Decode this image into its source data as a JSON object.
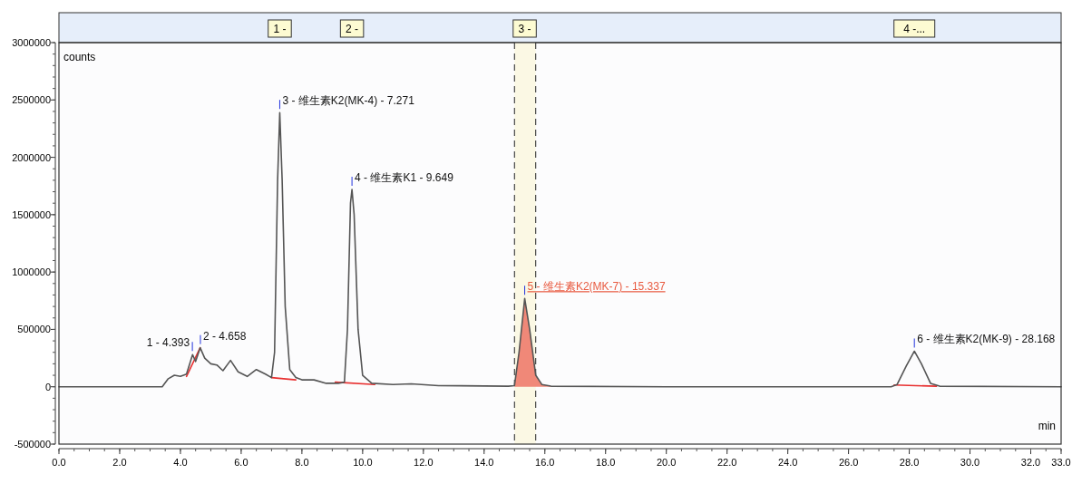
{
  "chart_data": {
    "type": "line",
    "xlabel": "min",
    "ylabel": "counts",
    "xlim": [
      0,
      33
    ],
    "ylim": [
      -500000,
      3000000
    ],
    "xticks": [
      {
        "value": 0,
        "label": "0.0"
      },
      {
        "value": 2,
        "label": "2.0"
      },
      {
        "value": 4,
        "label": "4.0"
      },
      {
        "value": 6,
        "label": "6.0"
      },
      {
        "value": 8,
        "label": "8.0"
      },
      {
        "value": 10,
        "label": "10.0"
      },
      {
        "value": 12,
        "label": "12.0"
      },
      {
        "value": 14,
        "label": "14.0"
      },
      {
        "value": 16,
        "label": "16.0"
      },
      {
        "value": 18,
        "label": "18.0"
      },
      {
        "value": 20,
        "label": "20.0"
      },
      {
        "value": 22,
        "label": "22.0"
      },
      {
        "value": 24,
        "label": "24.0"
      },
      {
        "value": 26,
        "label": "26.0"
      },
      {
        "value": 28,
        "label": "28.0"
      },
      {
        "value": 30,
        "label": "30.0"
      },
      {
        "value": 32,
        "label": "32.0"
      },
      {
        "value": 33,
        "label": "33.0"
      }
    ],
    "yticks": [
      -500000,
      0,
      500000,
      1000000,
      1500000,
      2000000,
      2500000,
      3000000
    ],
    "grid": false,
    "marker": "none",
    "line_style": "solid",
    "series": [
      {
        "type": "area",
        "color": "#f08878",
        "x": [
          15.0,
          15.15,
          15.337,
          15.5,
          15.7,
          15.9,
          16.2
        ],
        "values": [
          10000,
          300000,
          770000,
          500000,
          100000,
          20000,
          5000
        ]
      },
      {
        "type": "line",
        "color": "#e83030",
        "x": [
          4.2,
          4.65,
          null,
          7.0,
          7.8,
          null,
          9.1,
          10.4,
          null,
          27.5,
          28.9
        ],
        "values": [
          90000,
          340000,
          null,
          80000,
          60000,
          null,
          40000,
          20000,
          null,
          15000,
          5000
        ]
      },
      {
        "type": "line",
        "color": "#555555",
        "x": [
          0,
          3.4,
          3.6,
          3.8,
          4.0,
          4.2,
          4.4,
          4.5,
          4.65,
          4.8,
          5.0,
          5.2,
          5.4,
          5.65,
          5.9,
          6.2,
          6.5,
          6.8,
          7.0,
          7.1,
          7.2,
          7.271,
          7.35,
          7.45,
          7.6,
          7.8,
          8.0,
          8.4,
          8.8,
          9.2,
          9.4,
          9.5,
          9.6,
          9.649,
          9.72,
          9.85,
          10.0,
          10.3,
          11.0,
          11.6,
          12.5,
          14.8,
          15.0,
          15.15,
          15.337,
          15.5,
          15.7,
          15.9,
          16.2,
          20.0,
          27.4,
          27.6,
          27.9,
          28.168,
          28.4,
          28.7,
          29.0,
          33.0
        ],
        "values": [
          0,
          0,
          70000,
          100000,
          90000,
          110000,
          280000,
          220000,
          340000,
          250000,
          200000,
          190000,
          140000,
          230000,
          130000,
          90000,
          150000,
          110000,
          80000,
          300000,
          1800000,
          2390000,
          1800000,
          700000,
          150000,
          80000,
          60000,
          60000,
          30000,
          30000,
          40000,
          500000,
          1600000,
          1720000,
          1500000,
          500000,
          100000,
          30000,
          20000,
          25000,
          10000,
          5000,
          10000,
          300000,
          770000,
          500000,
          100000,
          20000,
          5000,
          0,
          0,
          20000,
          180000,
          310000,
          200000,
          30000,
          5000,
          0
        ]
      }
    ],
    "bands": [
      {
        "axis": "x",
        "from": 15.0,
        "to": 15.7,
        "color": "#fbf8e4"
      }
    ],
    "ref_lines": [
      {
        "axis": "x",
        "value": 15.0,
        "color": "#222222",
        "line_style": "dashed"
      },
      {
        "axis": "x",
        "value": 15.7,
        "color": "#222222",
        "line_style": "dashed"
      }
    ],
    "annotations": [
      "1 -",
      "2 -",
      "3 -",
      "4 -...",
      {
        "text": "1 - 4.393",
        "x": 4.393,
        "y": 280000
      },
      {
        "text": "2 - 4.658",
        "x": 4.658,
        "y": 340000
      },
      {
        "text": "3 - 维生素K2(MK-4) - 7.271",
        "x": 7.271,
        "y": 2390000
      },
      {
        "text": "4 - 维生素K1 - 9.649",
        "x": 9.649,
        "y": 1720000
      },
      {
        "text": "5 - 维生素K2(MK-7) - 15.337",
        "x": 15.337,
        "y": 770000
      },
      {
        "text": "6 - 维生素K2(MK-9) - 28.168",
        "x": 28.168,
        "y": 310000
      }
    ]
  }
}
